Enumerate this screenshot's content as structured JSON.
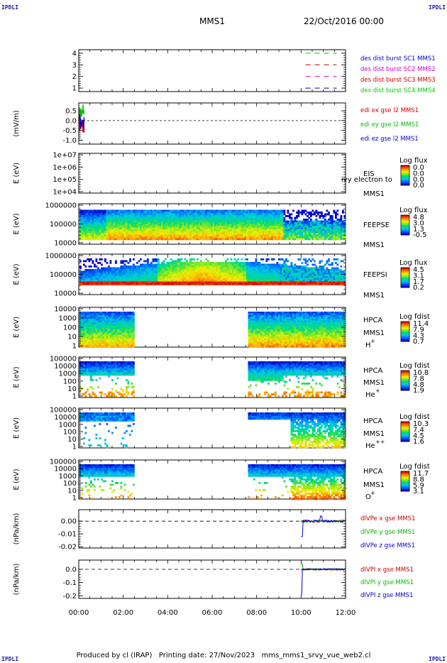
{
  "corner_label": "IPDLI",
  "header": {
    "spacecraft": "MMS1",
    "date": "22/Oct/2016 00:00"
  },
  "footer": {
    "produced": "Produced by cl (IRAP)",
    "printing": "Printing date: 27/Nov/2023",
    "script": "mms_mms1_srvy_vue_web2.cl"
  },
  "time_axis": {
    "labels": [
      "00:00",
      "02:00",
      "04:00",
      "06:00",
      "08:00",
      "10:00",
      "12:00"
    ],
    "range_hours": [
      0,
      12
    ]
  },
  "chart_data": [
    {
      "id": "burst",
      "type": "line",
      "yticks": [
        "1",
        "2",
        "3",
        "4"
      ],
      "ylim": [
        0.7,
        4.3
      ],
      "series": [
        {
          "name": "des dist burst SC1 MMS1",
          "color": "#0000cc",
          "level": 1
        },
        {
          "name": "des dist burst SC2 MMS2",
          "color": "#cc00cc",
          "level": 2
        },
        {
          "name": "des dist burst SC3 MMS3",
          "color": "#cc0000",
          "level": 3
        },
        {
          "name": "des dist burst SC4 MMS4",
          "color": "#00cc00",
          "level": 4
        }
      ],
      "segment_hours": [
        10.2,
        11.6
      ]
    },
    {
      "id": "edi",
      "type": "line",
      "ylabel": "(mV/m)",
      "yticks": [
        "0.5",
        "0.0",
        "-0.5",
        "-1.0"
      ],
      "ylim": [
        -1.2,
        0.9
      ],
      "dashed_zero": true,
      "series": [
        {
          "name": "edi ex gse l2 MMS1",
          "color": "#cc0000"
        },
        {
          "name": "edi ey gse l2 MMS1",
          "color": "#00bb00"
        },
        {
          "name": "edi ez gse l2 MMS1",
          "color": "#0000cc"
        }
      ]
    },
    {
      "id": "eis",
      "type": "heatmap",
      "ylabel": "E (eV)",
      "yticks": [
        "1e+07",
        "1e+06",
        "1e+05",
        "1e+04"
      ],
      "labels": [
        "EIS",
        "MMS1"
      ],
      "overlay_text": "ivy electron to",
      "colorbar": {
        "title": "Log flux",
        "ticks": [
          "0.0",
          "0.0",
          "0.0",
          "0.0"
        ]
      }
    },
    {
      "id": "feepse",
      "type": "heatmap",
      "ylabel": "E (eV)",
      "yticks": [
        "1000000",
        "100000",
        "10000"
      ],
      "labels": [
        "FEEPSE",
        "MMS1"
      ],
      "colorbar": {
        "title": "Log flux",
        "ticks": [
          "4.8",
          "3.0",
          "1.3",
          "-0.5"
        ]
      }
    },
    {
      "id": "feepsi",
      "type": "heatmap",
      "ylabel": "E (eV)",
      "yticks": [
        "1000000",
        "100000",
        "10000"
      ],
      "labels": [
        "FEEPSI",
        "MMS1"
      ],
      "colorbar": {
        "title": "Log flux",
        "ticks": [
          "4.5",
          "3.1",
          "1.7",
          "0.2"
        ]
      }
    },
    {
      "id": "hpca_h",
      "type": "heatmap",
      "ylabel": "E (eV)",
      "yticks": [
        "10000",
        "1000",
        "100",
        "10",
        "1"
      ],
      "labels": [
        "HPCA",
        "MMS1"
      ],
      "species": "H",
      "species_charge": "+",
      "colorbar": {
        "title": "Log fdist",
        "ticks": [
          "11.4",
          "7.9",
          "4.3",
          "0.7"
        ]
      }
    },
    {
      "id": "hpca_he1",
      "type": "heatmap",
      "ylabel": "E (eV)",
      "yticks": [
        "100000",
        "10000",
        "1000",
        "100",
        "10",
        "1"
      ],
      "labels": [
        "HPCA",
        "MMS1"
      ],
      "species": "He",
      "species_charge": "+",
      "colorbar": {
        "title": "Log fdist",
        "ticks": [
          "10.8",
          "7.8",
          "4.8",
          "1.9"
        ]
      }
    },
    {
      "id": "hpca_he2",
      "type": "heatmap",
      "ylabel": "E (eV)",
      "yticks": [
        "100000",
        "10000",
        "1000",
        "100",
        "10",
        "1"
      ],
      "labels": [
        "HPCA",
        "MMS1"
      ],
      "species": "He",
      "species_charge": "++",
      "colorbar": {
        "title": "Log fdist",
        "ticks": [
          "10.3",
          "7.4",
          "4.5",
          "1.6"
        ]
      }
    },
    {
      "id": "hpca_o",
      "type": "heatmap",
      "ylabel": "E (eV)",
      "yticks": [
        "100000",
        "10000",
        "1000",
        "100",
        "10",
        "1"
      ],
      "labels": [
        "HPCA",
        "MMS1"
      ],
      "species": "O",
      "species_charge": "+",
      "colorbar": {
        "title": "Log fdist",
        "ticks": [
          "11.7",
          "8.8",
          "5.9",
          "3.1"
        ]
      }
    },
    {
      "id": "divpe",
      "type": "line",
      "ylabel": "(nPa/km)",
      "yticks": [
        "0.00",
        "-0.01",
        "-0.02"
      ],
      "ylim": [
        -0.021,
        0.009
      ],
      "dashed_zero": true,
      "series": [
        {
          "name": "dIVPe x gse MMS1",
          "color": "#cc0000"
        },
        {
          "name": "dIVPe y gse MMS1",
          "color": "#00bb00"
        },
        {
          "name": "dIVPe z gse MMS1",
          "color": "#0000cc"
        }
      ]
    },
    {
      "id": "divpi",
      "type": "line",
      "ylabel": "(nPa/km)",
      "yticks": [
        "0.0",
        "-0.1",
        "-0.2"
      ],
      "ylim": [
        -0.22,
        0.07
      ],
      "dashed_zero": true,
      "series": [
        {
          "name": "dIVPI x gse MMS1",
          "color": "#cc0000"
        },
        {
          "name": "dIVPI y gse MMS1",
          "color": "#00bb00"
        },
        {
          "name": "dIVPI z gse MMS1",
          "color": "#0000cc"
        }
      ]
    }
  ]
}
